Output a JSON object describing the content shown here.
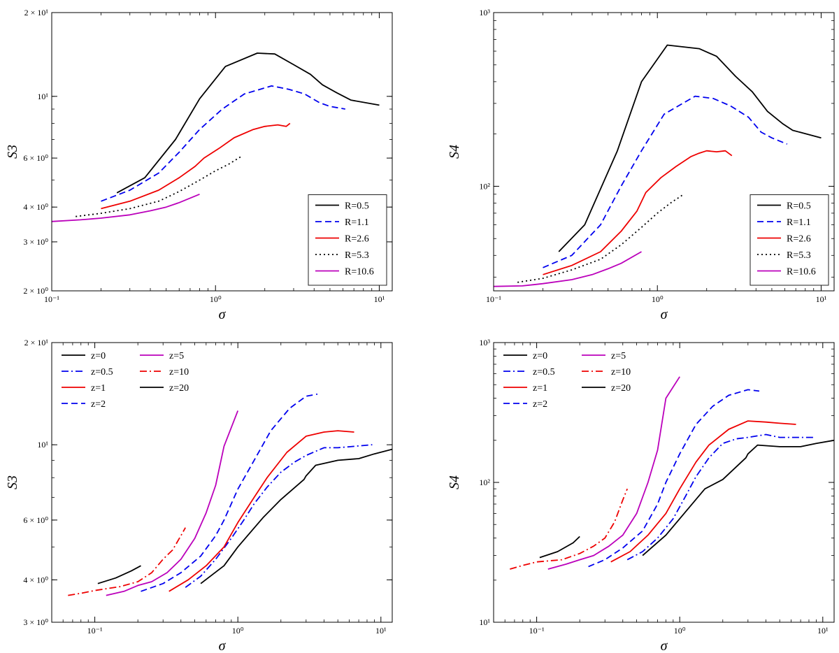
{
  "chart_data": [
    {
      "id": "tl",
      "type": "line",
      "xscale": "log",
      "yscale": "log",
      "xlim": [
        0.1,
        12
      ],
      "ylim": [
        2,
        20
      ],
      "xlabel": "σ",
      "ylabel": "S3",
      "xticks": [
        {
          "v": 0.1,
          "t": "10⁻¹"
        },
        {
          "v": 1,
          "t": "10⁰"
        },
        {
          "v": 10,
          "t": "10¹"
        }
      ],
      "yticks": [
        {
          "v": 2,
          "t": "2 × 10⁰"
        },
        {
          "v": 3,
          "t": "3 × 10⁰"
        },
        {
          "v": 4,
          "t": "4 × 10⁰"
        },
        {
          "v": 6,
          "t": "6 × 10⁰"
        },
        {
          "v": 10,
          "t": "10¹"
        },
        {
          "v": 20,
          "t": "2 × 10¹"
        }
      ],
      "legend": {
        "position": "lower-right",
        "columns": 1
      },
      "series": [
        {
          "name": "R=0.5",
          "color": "#000000",
          "dash": "solid",
          "x": [
            0.25,
            0.37,
            0.57,
            0.8,
            1.15,
            1.8,
            2.3,
            3,
            3.8,
            4.5,
            5.5,
            6.7,
            10
          ],
          "y": [
            4.5,
            5.1,
            7,
            9.8,
            12.8,
            14.3,
            14.2,
            13,
            12,
            11,
            10.3,
            9.7,
            9.3
          ]
        },
        {
          "name": "R=1.1",
          "color": "#0000ee",
          "dash": "dashed",
          "x": [
            0.2,
            0.3,
            0.45,
            0.6,
            0.8,
            1.1,
            1.5,
            2.2,
            2.8,
            3.5,
            4.3,
            5,
            6.2
          ],
          "y": [
            4.2,
            4.6,
            5.3,
            6.3,
            7.6,
            9,
            10.2,
            10.9,
            10.6,
            10.2,
            9.5,
            9.2,
            9
          ]
        },
        {
          "name": "R=2.6",
          "color": "#ee0000",
          "dash": "solid",
          "x": [
            0.2,
            0.3,
            0.45,
            0.6,
            0.75,
            0.85,
            1.05,
            1.3,
            1.7,
            2.0,
            2.4,
            2.7,
            2.85
          ],
          "y": [
            3.95,
            4.2,
            4.6,
            5.1,
            5.6,
            6,
            6.5,
            7.1,
            7.6,
            7.8,
            7.9,
            7.8,
            8
          ]
        },
        {
          "name": "R=5.3",
          "color": "#000000",
          "dash": "dotted",
          "x": [
            0.14,
            0.2,
            0.3,
            0.45,
            0.6,
            0.8,
            1.0,
            1.2,
            1.45
          ],
          "y": [
            3.7,
            3.8,
            3.95,
            4.2,
            4.55,
            5,
            5.4,
            5.7,
            6.1
          ]
        },
        {
          "name": "R=10.6",
          "color": "#bb00bb",
          "dash": "solid",
          "x": [
            0.1,
            0.15,
            0.2,
            0.3,
            0.4,
            0.5,
            0.6,
            0.8
          ],
          "y": [
            3.55,
            3.6,
            3.65,
            3.75,
            3.88,
            4.0,
            4.15,
            4.45
          ]
        }
      ]
    },
    {
      "id": "tr",
      "type": "line",
      "xscale": "log",
      "yscale": "log",
      "xlim": [
        0.1,
        12
      ],
      "ylim": [
        25,
        1000
      ],
      "xlabel": "σ",
      "ylabel": "S4",
      "xticks": [
        {
          "v": 0.1,
          "t": "10⁻¹"
        },
        {
          "v": 1,
          "t": "10⁰"
        },
        {
          "v": 10,
          "t": "10¹"
        }
      ],
      "yticks": [
        {
          "v": 100,
          "t": "10²"
        },
        {
          "v": 1000,
          "t": "10³"
        }
      ],
      "legend": {
        "position": "lower-right",
        "columns": 1
      },
      "series": [
        {
          "name": "R=0.5",
          "color": "#000000",
          "dash": "solid",
          "x": [
            0.25,
            0.36,
            0.57,
            0.8,
            1.15,
            1.8,
            2.3,
            3,
            3.8,
            4.7,
            5.8,
            6.7,
            10
          ],
          "y": [
            42,
            60,
            160,
            400,
            650,
            620,
            560,
            430,
            350,
            270,
            230,
            210,
            190
          ]
        },
        {
          "name": "R=1.1",
          "color": "#0000ee",
          "dash": "dashed",
          "x": [
            0.2,
            0.3,
            0.45,
            0.6,
            0.8,
            1.1,
            1.7,
            2.2,
            2.8,
            3.6,
            4.3,
            5,
            6.2
          ],
          "y": [
            34,
            40,
            60,
            100,
            160,
            260,
            330,
            320,
            290,
            250,
            205,
            190,
            175
          ]
        },
        {
          "name": "R=2.6",
          "color": "#ee0000",
          "dash": "solid",
          "x": [
            0.2,
            0.3,
            0.45,
            0.6,
            0.75,
            0.85,
            1.05,
            1.3,
            1.6,
            1.8,
            2.0,
            2.3,
            2.6,
            2.85
          ],
          "y": [
            31,
            35,
            42,
            55,
            72,
            92,
            112,
            130,
            148,
            155,
            160,
            158,
            160,
            150
          ]
        },
        {
          "name": "R=5.3",
          "color": "#000000",
          "dash": "dotted",
          "x": [
            0.14,
            0.2,
            0.3,
            0.45,
            0.6,
            0.8,
            1.0,
            1.2,
            1.45
          ],
          "y": [
            28,
            29.5,
            33,
            38,
            46,
            58,
            70,
            80,
            90
          ]
        },
        {
          "name": "R=10.6",
          "color": "#bb00bb",
          "dash": "solid",
          "x": [
            0.1,
            0.15,
            0.2,
            0.3,
            0.4,
            0.5,
            0.6,
            0.8
          ],
          "y": [
            26.5,
            26.7,
            27.5,
            29,
            31,
            33.5,
            36,
            42
          ]
        }
      ]
    },
    {
      "id": "bl",
      "type": "line",
      "xscale": "log",
      "yscale": "log",
      "xlim": [
        0.05,
        12
      ],
      "ylim": [
        3,
        20
      ],
      "xlabel": "σ",
      "ylabel": "S3",
      "xticks": [
        {
          "v": 0.1,
          "t": "10⁻¹"
        },
        {
          "v": 1,
          "t": "10⁰"
        },
        {
          "v": 10,
          "t": "10¹"
        }
      ],
      "yticks": [
        {
          "v": 3,
          "t": "3 × 10⁰"
        },
        {
          "v": 4,
          "t": "4 × 10⁰"
        },
        {
          "v": 6,
          "t": "6 × 10⁰"
        },
        {
          "v": 10,
          "t": "10¹"
        },
        {
          "v": 20,
          "t": "2 × 10¹"
        }
      ],
      "legend": {
        "position": "upper-left",
        "columns": 2
      },
      "series": [
        {
          "name": "z=0",
          "color": "#000000",
          "dash": "solid",
          "x": [
            0.55,
            0.8,
            1.0,
            1.5,
            2.0,
            2.9,
            3.0,
            3.5,
            5,
            7,
            9,
            12
          ],
          "y": [
            3.9,
            4.4,
            5.0,
            6.1,
            6.9,
            7.9,
            8.1,
            8.7,
            9,
            9.1,
            9.4,
            9.7
          ]
        },
        {
          "name": "z=0.5",
          "color": "#0000ee",
          "dash": "dashdot",
          "x": [
            0.43,
            0.55,
            0.7,
            0.9,
            1.1,
            1.3,
            1.6,
            2.0,
            2.5,
            3.0,
            4,
            5,
            8.7
          ],
          "y": [
            3.8,
            4.1,
            4.6,
            5.3,
            6,
            6.7,
            7.5,
            8.3,
            8.9,
            9.3,
            9.8,
            9.8,
            10
          ]
        },
        {
          "name": "z=1",
          "color": "#ee0000",
          "dash": "solid",
          "x": [
            0.33,
            0.45,
            0.6,
            0.8,
            1.0,
            1.3,
            1.6,
            2.2,
            3.0,
            4,
            5,
            6.5
          ],
          "y": [
            3.7,
            4,
            4.4,
            5,
            5.9,
            7,
            8,
            9.5,
            10.6,
            10.9,
            11,
            10.9
          ]
        },
        {
          "name": "z=2",
          "color": "#0000ee",
          "dash": "dashed",
          "x": [
            0.21,
            0.3,
            0.4,
            0.55,
            0.7,
            0.8,
            1.0,
            1.3,
            1.7,
            2.3,
            3.0,
            3.6
          ],
          "y": [
            3.7,
            3.9,
            4.2,
            4.7,
            5.4,
            6,
            7.4,
            9,
            11,
            12.8,
            13.9,
            14.1
          ]
        },
        {
          "name": "z=5",
          "color": "#bb00bb",
          "dash": "solid",
          "x": [
            0.12,
            0.16,
            0.2,
            0.25,
            0.32,
            0.4,
            0.5,
            0.6,
            0.7,
            0.8,
            1.0
          ],
          "y": [
            3.6,
            3.7,
            3.85,
            3.95,
            4.2,
            4.6,
            5.3,
            6.3,
            7.6,
            9.9,
            12.6
          ]
        },
        {
          "name": "z=10",
          "color": "#ee0000",
          "dash": "dashdot",
          "x": [
            0.065,
            0.08,
            0.1,
            0.15,
            0.2,
            0.25,
            0.3,
            0.35,
            0.4,
            0.43
          ],
          "y": [
            3.6,
            3.65,
            3.72,
            3.82,
            3.95,
            4.2,
            4.6,
            4.9,
            5.4,
            5.7
          ]
        },
        {
          "name": "z=20",
          "color": "#000000",
          "dash": "solid",
          "x": [
            0.105,
            0.14,
            0.18,
            0.21
          ],
          "y": [
            3.9,
            4.05,
            4.25,
            4.4
          ]
        }
      ]
    },
    {
      "id": "br",
      "type": "line",
      "xscale": "log",
      "yscale": "log",
      "xlim": [
        0.05,
        12
      ],
      "ylim": [
        10,
        1000
      ],
      "xlabel": "σ",
      "ylabel": "S4",
      "xticks": [
        {
          "v": 0.1,
          "t": "10⁻¹"
        },
        {
          "v": 1,
          "t": "10⁰"
        },
        {
          "v": 10,
          "t": "10¹"
        }
      ],
      "yticks": [
        {
          "v": 10,
          "t": "10¹"
        },
        {
          "v": 100,
          "t": "10²"
        },
        {
          "v": 1000,
          "t": "10³"
        }
      ],
      "legend": {
        "position": "upper-left",
        "columns": 2
      },
      "series": [
        {
          "name": "z=0",
          "color": "#000000",
          "dash": "solid",
          "x": [
            0.55,
            0.8,
            1.0,
            1.5,
            2.0,
            2.9,
            3.0,
            3.5,
            5,
            7,
            9,
            12
          ],
          "y": [
            30,
            42,
            55,
            90,
            105,
            150,
            160,
            185,
            180,
            180,
            190,
            200
          ]
        },
        {
          "name": "z=0.5",
          "color": "#0000ee",
          "dash": "dashdot",
          "x": [
            0.43,
            0.55,
            0.7,
            0.9,
            1.1,
            1.3,
            1.6,
            2.0,
            2.5,
            3.0,
            4,
            5,
            8.7
          ],
          "y": [
            28,
            32,
            40,
            55,
            80,
            110,
            150,
            190,
            205,
            210,
            220,
            210,
            210
          ]
        },
        {
          "name": "z=1",
          "color": "#ee0000",
          "dash": "solid",
          "x": [
            0.33,
            0.45,
            0.6,
            0.8,
            1.0,
            1.3,
            1.6,
            2.2,
            3.0,
            4,
            5,
            6.5
          ],
          "y": [
            27,
            32,
            42,
            60,
            90,
            140,
            185,
            240,
            275,
            270,
            265,
            260
          ]
        },
        {
          "name": "z=2",
          "color": "#0000ee",
          "dash": "dashed",
          "x": [
            0.23,
            0.3,
            0.4,
            0.55,
            0.7,
            0.8,
            1.0,
            1.3,
            1.7,
            2.2,
            3.0,
            3.6
          ],
          "y": [
            25,
            28,
            34,
            45,
            70,
            100,
            160,
            260,
            350,
            420,
            460,
            450
          ]
        },
        {
          "name": "z=5",
          "color": "#bb00bb",
          "dash": "solid",
          "x": [
            0.12,
            0.16,
            0.2,
            0.25,
            0.32,
            0.4,
            0.5,
            0.6,
            0.7,
            0.8,
            1.0
          ],
          "y": [
            24,
            26,
            28,
            30,
            35,
            42,
            60,
            100,
            170,
            400,
            570
          ]
        },
        {
          "name": "z=10",
          "color": "#ee0000",
          "dash": "dashdot",
          "x": [
            0.065,
            0.08,
            0.1,
            0.15,
            0.2,
            0.25,
            0.3,
            0.35,
            0.4,
            0.43
          ],
          "y": [
            24,
            25.5,
            27,
            28,
            31,
            35,
            40,
            52,
            75,
            90
          ]
        },
        {
          "name": "z=20",
          "color": "#000000",
          "dash": "solid",
          "x": [
            0.105,
            0.14,
            0.18,
            0.2
          ],
          "y": [
            29,
            32,
            37,
            41
          ]
        }
      ]
    }
  ]
}
